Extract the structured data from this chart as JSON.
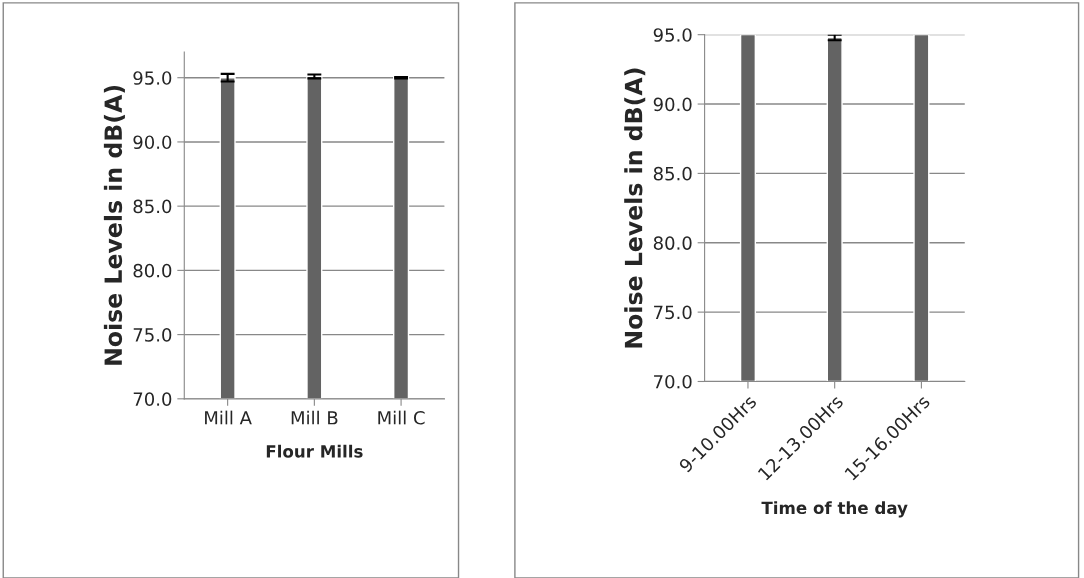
{
  "chart_data": [
    {
      "type": "bar",
      "xlabel": "Flour Mills",
      "ylabel": "Noise Levels in dB(A)",
      "categories": [
        "Mill A",
        "Mill B",
        "Mill C"
      ],
      "values": [
        95.0,
        95.1,
        95.0
      ],
      "errors": [
        0.3,
        0.15,
        0.05
      ],
      "color": "#636363",
      "ylim": [
        70,
        97
      ],
      "yticks": [
        {
          "value": 70,
          "label": "70.0"
        },
        {
          "value": 75,
          "label": "75.0"
        },
        {
          "value": 80,
          "label": "80.0"
        },
        {
          "value": 85,
          "label": "85.0"
        },
        {
          "value": 90,
          "label": "90.0"
        },
        {
          "value": 95,
          "label": "95.0"
        }
      ],
      "grid": "y"
    },
    {
      "type": "bar",
      "xlabel": "Time of the day",
      "ylabel": "Noise Levels in dB(A)",
      "categories": [
        "9-10.00Hrs",
        "12-13.00Hrs",
        "15-16.00Hrs"
      ],
      "values": [
        95.0,
        94.8,
        95.0
      ],
      "errors": [
        null,
        0.2,
        null
      ],
      "color": "#636363",
      "ylim": [
        70,
        95
      ],
      "yticks": [
        {
          "value": 70,
          "label": "70.0"
        },
        {
          "value": 75,
          "label": "75.0"
        },
        {
          "value": 80,
          "label": "80.0"
        },
        {
          "value": 85,
          "label": "85.0"
        },
        {
          "value": 90,
          "label": "90.0"
        },
        {
          "value": 95,
          "label": "95.0"
        }
      ],
      "grid": "y"
    }
  ]
}
